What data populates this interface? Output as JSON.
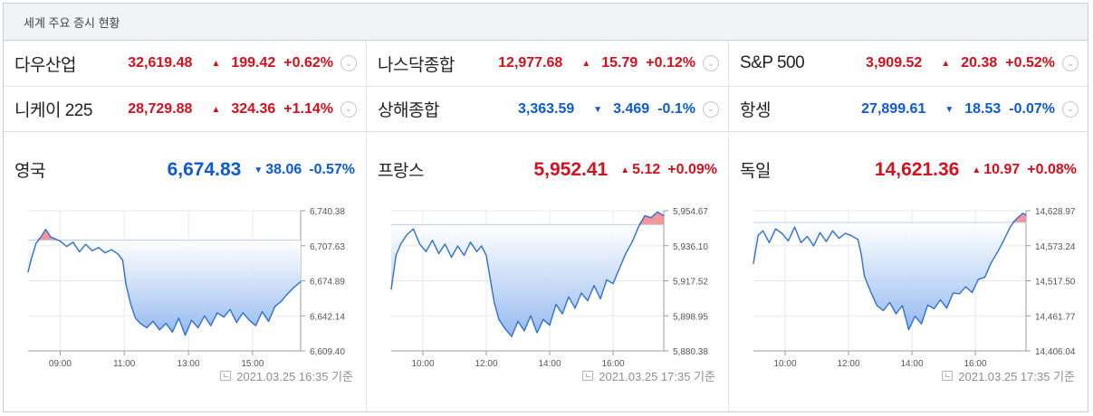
{
  "header": {
    "title": "세계 주요 증시 현황"
  },
  "tickers": [
    [
      {
        "name": "다우산업",
        "price": "32,619.48",
        "change": "199.42",
        "pct": "+0.62%",
        "dir": "up"
      },
      {
        "name": "나스닥종합",
        "price": "12,977.68",
        "change": "15.79",
        "pct": "+0.12%",
        "dir": "up"
      },
      {
        "name": "S&P 500",
        "price": "3,909.52",
        "change": "20.38",
        "pct": "+0.52%",
        "dir": "up"
      }
    ],
    [
      {
        "name": "니케이 225",
        "price": "28,729.88",
        "change": "324.36",
        "pct": "+1.14%",
        "dir": "up"
      },
      {
        "name": "상해종합",
        "price": "3,363.59",
        "change": "3.469",
        "pct": "-0.1%",
        "dir": "down"
      },
      {
        "name": "항셍",
        "price": "27,899.61",
        "change": "18.53",
        "pct": "-0.07%",
        "dir": "down"
      }
    ]
  ],
  "panels": [
    {
      "name": "영국",
      "price": "6,674.83",
      "change": "38.06",
      "pct": "-0.57%",
      "dir": "down",
      "timestamp": "2021.03.25 16:35 기준"
    },
    {
      "name": "프랑스",
      "price": "5,952.41",
      "change": "5.12",
      "pct": "+0.09%",
      "dir": "up",
      "timestamp": "2021.03.25 17:35 기준"
    },
    {
      "name": "독일",
      "price": "14,621.36",
      "change": "10.97",
      "pct": "+0.08%",
      "dir": "up",
      "timestamp": "2021.03.25 17:35 기준"
    }
  ],
  "colors": {
    "up": "#d3101c",
    "down": "#0d5bd1",
    "line": "#2f6fd6",
    "fill": "#8fb6ee",
    "up_fill": "#f37a7a"
  },
  "icons": {
    "expand": "chevron-down-circle-icon",
    "clock": "calendar-clock-icon"
  },
  "chart_data": [
    {
      "type": "area",
      "title": "영국",
      "x_ticks": [
        "09:00",
        "11:00",
        "13:00",
        "15:00"
      ],
      "y_ticks": [
        "6,740.38",
        "6,707.63",
        "6,674.89",
        "6,642.14",
        "6,609.40"
      ],
      "ylim": [
        6609.4,
        6740.38
      ],
      "baseline": 6712.89,
      "x_hours": [
        8.0,
        8.1,
        8.25,
        8.4,
        8.55,
        8.7,
        8.85,
        9.0,
        9.2,
        9.4,
        9.6,
        9.8,
        10.0,
        10.2,
        10.4,
        10.6,
        10.8,
        10.95,
        11.05,
        11.2,
        11.35,
        11.5,
        11.7,
        11.9,
        12.1,
        12.3,
        12.5,
        12.7,
        12.9,
        13.1,
        13.3,
        13.5,
        13.7,
        13.9,
        14.1,
        14.3,
        14.5,
        14.7,
        14.9,
        15.1,
        15.3,
        15.5,
        15.7,
        15.9,
        16.1,
        16.3,
        16.5
      ],
      "values": [
        6683,
        6695,
        6710,
        6716,
        6723,
        6716,
        6714,
        6712,
        6707,
        6711,
        6702,
        6709,
        6703,
        6706,
        6701,
        6704,
        6700,
        6694,
        6672,
        6653,
        6640,
        6635,
        6631,
        6637,
        6629,
        6635,
        6627,
        6640,
        6624,
        6638,
        6631,
        6642,
        6633,
        6645,
        6641,
        6648,
        6636,
        6645,
        6638,
        6633,
        6646,
        6637,
        6651,
        6656,
        6663,
        6669,
        6674
      ]
    },
    {
      "type": "area",
      "title": "프랑스",
      "x_ticks": [
        "10:00",
        "12:00",
        "14:00",
        "16:00"
      ],
      "y_ticks": [
        "5,954.67",
        "5,936.10",
        "5,917.52",
        "5,898.95",
        "5,880.38"
      ],
      "ylim": [
        5880.38,
        5954.67
      ],
      "baseline": 5947.3,
      "x_hours": [
        9.0,
        9.15,
        9.3,
        9.5,
        9.7,
        9.9,
        10.1,
        10.3,
        10.5,
        10.7,
        10.9,
        11.1,
        11.3,
        11.5,
        11.7,
        11.85,
        12.0,
        12.1,
        12.25,
        12.4,
        12.6,
        12.8,
        13.0,
        13.2,
        13.4,
        13.6,
        13.8,
        14.0,
        14.2,
        14.4,
        14.6,
        14.8,
        15.0,
        15.2,
        15.4,
        15.6,
        15.8,
        16.0,
        16.2,
        16.4,
        16.6,
        16.8,
        17.0,
        17.2,
        17.4,
        17.6
      ],
      "values": [
        5913,
        5931,
        5937,
        5942,
        5945,
        5937,
        5933,
        5939,
        5932,
        5937,
        5930,
        5936,
        5931,
        5938,
        5933,
        5936,
        5931,
        5921,
        5906,
        5897,
        5892,
        5888,
        5896,
        5891,
        5899,
        5890,
        5897,
        5894,
        5905,
        5900,
        5909,
        5903,
        5911,
        5907,
        5915,
        5908,
        5918,
        5916,
        5924,
        5932,
        5938,
        5946,
        5952,
        5951,
        5954,
        5952
      ]
    },
    {
      "type": "area",
      "title": "독일",
      "x_ticks": [
        "10:00",
        "12:00",
        "14:00",
        "16:00"
      ],
      "y_ticks": [
        "14,628.97",
        "14,573.24",
        "14,517.50",
        "14,461.77",
        "14,406.04"
      ],
      "ylim": [
        14406.04,
        14628.97
      ],
      "baseline": 14610.26,
      "x_hours": [
        9.0,
        9.15,
        9.3,
        9.5,
        9.7,
        9.9,
        10.1,
        10.3,
        10.5,
        10.7,
        10.9,
        11.1,
        11.3,
        11.5,
        11.7,
        11.9,
        12.1,
        12.3,
        12.4,
        12.5,
        12.7,
        12.9,
        13.1,
        13.3,
        13.5,
        13.7,
        13.9,
        14.1,
        14.3,
        14.5,
        14.7,
        14.9,
        15.1,
        15.3,
        15.5,
        15.7,
        15.9,
        16.1,
        16.3,
        16.5,
        16.7,
        16.9,
        17.1,
        17.3,
        17.5,
        17.6
      ],
      "values": [
        14545,
        14590,
        14597,
        14578,
        14600,
        14593,
        14581,
        14603,
        14578,
        14588,
        14573,
        14594,
        14580,
        14597,
        14585,
        14593,
        14589,
        14583,
        14560,
        14525,
        14500,
        14478,
        14470,
        14483,
        14465,
        14478,
        14440,
        14461,
        14449,
        14479,
        14473,
        14487,
        14474,
        14498,
        14497,
        14508,
        14499,
        14520,
        14523,
        14546,
        14563,
        14582,
        14603,
        14616,
        14625,
        14622
      ]
    }
  ]
}
